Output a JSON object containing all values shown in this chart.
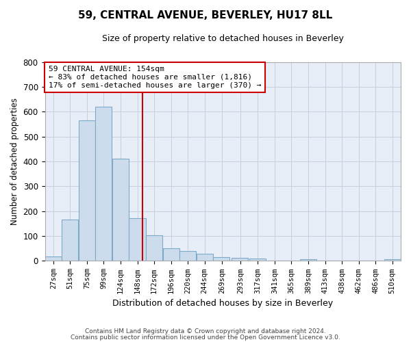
{
  "title": "59, CENTRAL AVENUE, BEVERLEY, HU17 8LL",
  "subtitle": "Size of property relative to detached houses in Beverley",
  "xlabel": "Distribution of detached houses by size in Beverley",
  "ylabel": "Number of detached properties",
  "bar_color": "#ccdcec",
  "bar_edge_color": "#7aaac8",
  "grid_color": "#c8d0dc",
  "background_color": "#e8eef8",
  "annotation_line1": "59 CENTRAL AVENUE: 154sqm",
  "annotation_line2": "← 83% of detached houses are smaller (1,816)",
  "annotation_line3": "17% of semi-detached houses are larger (370) →",
  "annotation_box_color": "#ffffff",
  "annotation_box_edge": "#cc0000",
  "vline_color": "#cc0000",
  "vline_x": 154,
  "categories": [
    "27sqm",
    "51sqm",
    "75sqm",
    "99sqm",
    "124sqm",
    "148sqm",
    "172sqm",
    "196sqm",
    "220sqm",
    "244sqm",
    "269sqm",
    "293sqm",
    "317sqm",
    "341sqm",
    "365sqm",
    "389sqm",
    "413sqm",
    "438sqm",
    "462sqm",
    "486sqm",
    "510sqm"
  ],
  "bin_edges": [
    15,
    39,
    63,
    87,
    111,
    135,
    159,
    183,
    207,
    231,
    255,
    281,
    307,
    331,
    355,
    379,
    403,
    427,
    451,
    475,
    499,
    523
  ],
  "values": [
    18,
    165,
    565,
    620,
    412,
    172,
    104,
    52,
    40,
    30,
    15,
    13,
    10,
    0,
    0,
    8,
    0,
    0,
    0,
    0,
    7
  ],
  "ylim": [
    0,
    800
  ],
  "yticks": [
    0,
    100,
    200,
    300,
    400,
    500,
    600,
    700,
    800
  ],
  "footer1": "Contains HM Land Registry data © Crown copyright and database right 2024.",
  "footer2": "Contains public sector information licensed under the Open Government Licence v3.0."
}
